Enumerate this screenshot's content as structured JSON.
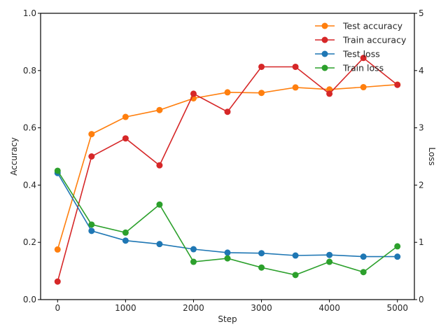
{
  "chart_data": {
    "type": "line",
    "x": [
      0,
      500,
      1000,
      1500,
      2000,
      2500,
      3000,
      3500,
      4000,
      4500,
      5000
    ],
    "xlabel": "Step",
    "xlim": [
      -250,
      5250
    ],
    "xticks": [
      0,
      1000,
      2000,
      3000,
      4000,
      5000
    ],
    "ylabel_left": "Accuracy",
    "ylim_left": [
      0,
      1
    ],
    "yticks_left": [
      0.0,
      0.2,
      0.4,
      0.6,
      0.8,
      1.0
    ],
    "ylabel_right": "Loss",
    "ylim_right": [
      0,
      5
    ],
    "yticks_right": [
      0,
      1,
      2,
      3,
      4,
      5
    ],
    "grid": false,
    "legend_position": "top-right",
    "series": [
      {
        "name": "Test accuracy",
        "axis": "left",
        "color": "#ff7f0e",
        "values": [
          0.175,
          0.578,
          0.638,
          0.662,
          0.703,
          0.724,
          0.722,
          0.741,
          0.734,
          0.742,
          0.751
        ]
      },
      {
        "name": "Train accuracy",
        "axis": "left",
        "color": "#d62728",
        "values": [
          0.063,
          0.5,
          0.563,
          0.469,
          0.719,
          0.656,
          0.813,
          0.813,
          0.719,
          0.844,
          0.75
        ]
      },
      {
        "name": "Test loss",
        "axis": "right",
        "color": "#1f77b4",
        "values": [
          2.21,
          1.2,
          1.03,
          0.97,
          0.88,
          0.82,
          0.81,
          0.77,
          0.78,
          0.75,
          0.75
        ]
      },
      {
        "name": "Train loss",
        "axis": "right",
        "color": "#2ca02c",
        "values": [
          2.25,
          1.31,
          1.17,
          1.66,
          0.66,
          0.72,
          0.56,
          0.43,
          0.66,
          0.48,
          0.93
        ]
      }
    ]
  }
}
